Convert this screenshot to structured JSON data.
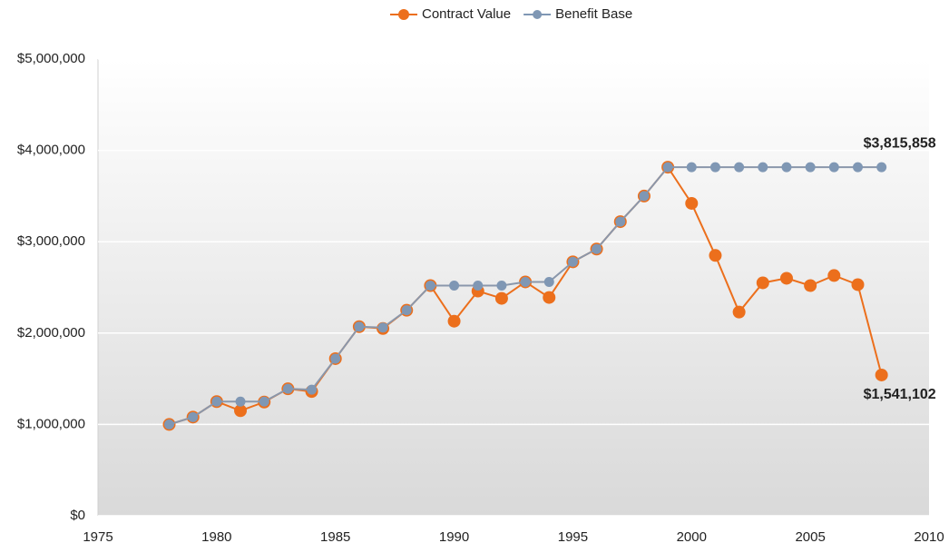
{
  "chart_data": {
    "type": "line",
    "x": [
      1978,
      1979,
      1980,
      1981,
      1982,
      1983,
      1984,
      1985,
      1986,
      1987,
      1988,
      1989,
      1990,
      1991,
      1992,
      1993,
      1994,
      1995,
      1996,
      1997,
      1998,
      1999,
      2000,
      2001,
      2002,
      2003,
      2004,
      2005,
      2006,
      2007,
      2008
    ],
    "series": [
      {
        "name": "Contract Value",
        "color": "#ec6f1c",
        "values": [
          1000000,
          1080000,
          1250000,
          1150000,
          1245000,
          1390000,
          1360000,
          1720000,
          2070000,
          2050000,
          2250000,
          2520000,
          2130000,
          2460000,
          2380000,
          2560000,
          2390000,
          2780000,
          2920000,
          3220000,
          3500000,
          3815858,
          3420000,
          2850000,
          2230000,
          2550000,
          2600000,
          2520000,
          2630000,
          2530000,
          1541102
        ],
        "value_labels": [
          null,
          null,
          null,
          null,
          null,
          null,
          null,
          null,
          null,
          null,
          null,
          null,
          null,
          null,
          null,
          null,
          null,
          null,
          null,
          null,
          null,
          null,
          null,
          null,
          null,
          null,
          null,
          null,
          null,
          null,
          "$1,541,102"
        ]
      },
      {
        "name": "Benefit Base",
        "color": "#7f97b4",
        "values": [
          1000000,
          1080000,
          1250000,
          1250000,
          1250000,
          1390000,
          1380000,
          1720000,
          2070000,
          2060000,
          2250000,
          2520000,
          2520000,
          2520000,
          2520000,
          2560000,
          2560000,
          2780000,
          2920000,
          3220000,
          3500000,
          3815858,
          3815858,
          3815858,
          3815858,
          3815858,
          3815858,
          3815858,
          3815858,
          3815858,
          3815858
        ],
        "value_labels": [
          null,
          null,
          null,
          null,
          null,
          null,
          null,
          null,
          null,
          null,
          null,
          null,
          null,
          null,
          null,
          null,
          null,
          null,
          null,
          null,
          null,
          null,
          null,
          null,
          null,
          null,
          null,
          null,
          null,
          null,
          "$3,815,858"
        ]
      }
    ],
    "xlim": [
      1975,
      2010
    ],
    "xticks": [
      1975,
      1980,
      1985,
      1990,
      1995,
      2000,
      2005,
      2010
    ],
    "ylim": [
      0,
      5000000
    ],
    "yticks": [
      {
        "value": 0,
        "label": "$0"
      },
      {
        "value": 1000000,
        "label": "$1,000,000"
      },
      {
        "value": 2000000,
        "label": "$2,000,000"
      },
      {
        "value": 3000000,
        "label": "$3,000,000"
      },
      {
        "value": 4000000,
        "label": "$4,000,000"
      },
      {
        "value": 5000000,
        "label": "$5,000,000"
      }
    ],
    "grid": true,
    "legend": "top"
  }
}
